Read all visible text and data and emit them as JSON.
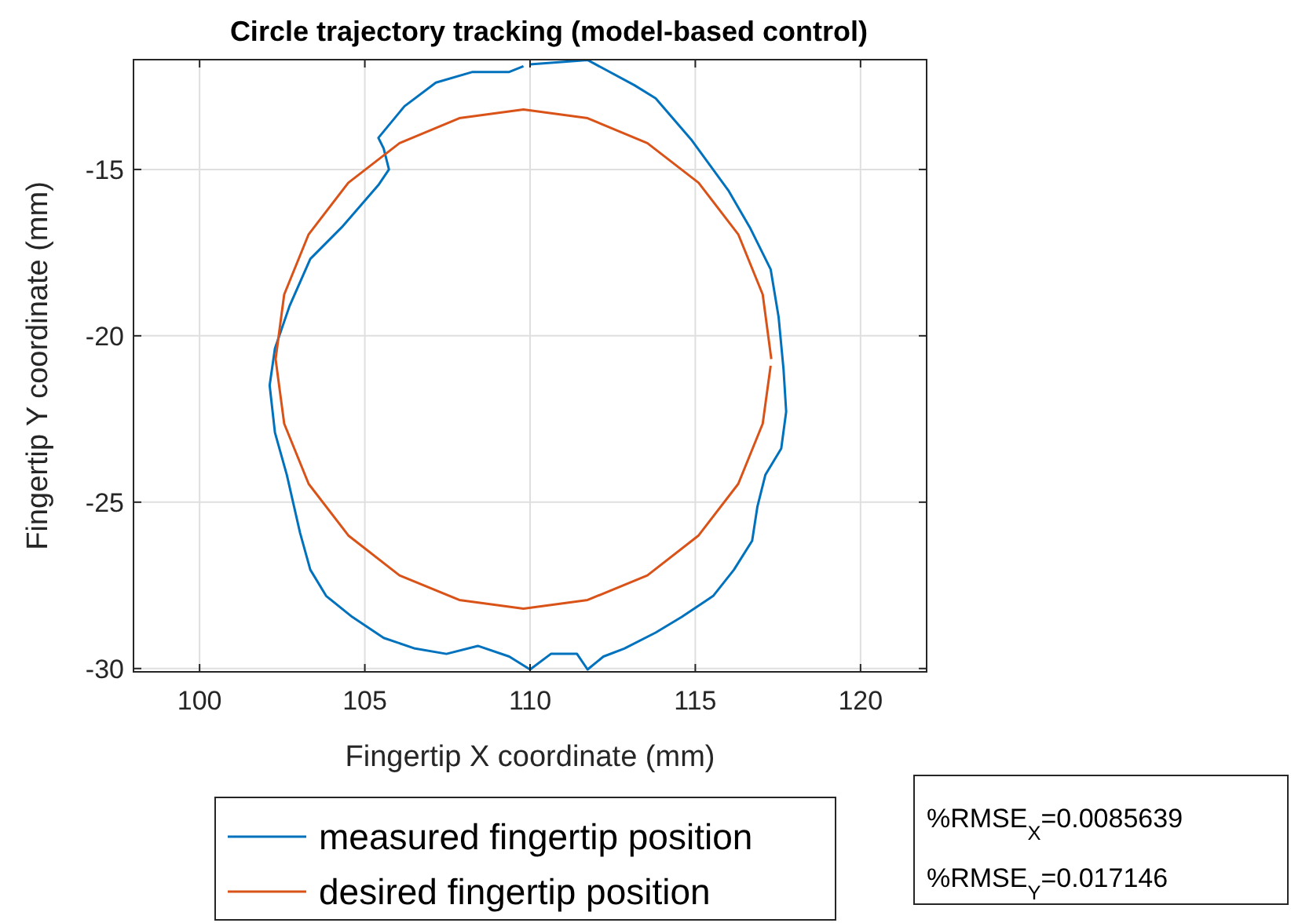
{
  "chart_data": {
    "type": "line",
    "title": "Circle trajectory tracking (model-based control)",
    "xlabel": "Fingertip X coordinate (mm)",
    "ylabel": "Fingertip Y coordinate (mm)",
    "xlim": [
      98,
      122
    ],
    "xticks": [
      100,
      105,
      110,
      115,
      120
    ],
    "ylim": [
      -30.1,
      -11.7
    ],
    "yticks": [
      -30,
      -25,
      -20,
      -15
    ],
    "grid": true,
    "legend": "bottom",
    "line_style": "solid",
    "marker": "none",
    "annotations": [
      "%RMSE$_{X}$=0.0085639",
      "%RMSE$_{Y}$=0.017146"
    ],
    "series": [
      {
        "name": "measured fingertip position",
        "color": "#0072bd",
        "x": [
          110,
          111.74,
          113.16,
          113.8,
          114.9,
          116.0,
          116.65,
          117.28,
          117.52,
          117.67,
          117.75,
          117.6,
          117.12,
          116.88,
          116.72,
          116.17,
          115.54,
          114.59,
          113.8,
          112.85,
          112.22,
          111.74,
          111.42,
          110.63,
          110,
          109.37,
          108.42,
          107.47,
          106.52,
          105.57,
          104.62,
          103.83,
          103.35,
          103.04,
          102.64,
          102.28,
          102.12,
          102.28,
          102.72,
          103.35,
          104.3,
          105.41,
          105.73,
          105.57,
          105.41,
          106.2,
          107.15,
          108.26,
          109.37,
          109.8
        ],
        "values": [
          -11.84,
          -11.71,
          -12.47,
          -12.86,
          -14.13,
          -15.63,
          -16.74,
          -18.0,
          -19.43,
          -21.01,
          -22.28,
          -23.39,
          -24.18,
          -25.13,
          -26.16,
          -27.03,
          -27.82,
          -28.45,
          -28.92,
          -29.4,
          -29.64,
          -30.03,
          -29.56,
          -29.56,
          -30.03,
          -29.64,
          -29.32,
          -29.56,
          -29.4,
          -29.08,
          -28.45,
          -27.82,
          -27.03,
          -25.92,
          -24.18,
          -22.91,
          -21.49,
          -20.38,
          -19.11,
          -17.69,
          -16.74,
          -15.47,
          -15.0,
          -14.37,
          -14.05,
          -13.1,
          -12.39,
          -12.07,
          -12.07,
          -11.9
        ]
      },
      {
        "name": "desired fingertip position",
        "color": "#d95319",
        "x": [
          117.3,
          117.04,
          116.3,
          115.1,
          113.55,
          111.74,
          109.8,
          107.86,
          106.05,
          104.5,
          103.3,
          102.56,
          102.3,
          102.56,
          103.3,
          104.5,
          106.05,
          107.86,
          109.8,
          111.74,
          113.55,
          115.1,
          116.3,
          117.04,
          117.28
        ],
        "values": [
          -20.7,
          -18.76,
          -16.95,
          -15.4,
          -14.21,
          -13.46,
          -13.2,
          -13.46,
          -14.21,
          -15.4,
          -16.95,
          -18.76,
          -20.7,
          -22.64,
          -24.45,
          -26.0,
          -27.2,
          -27.94,
          -28.2,
          -27.94,
          -27.2,
          -26.0,
          -24.45,
          -22.64,
          -20.9
        ]
      }
    ]
  }
}
